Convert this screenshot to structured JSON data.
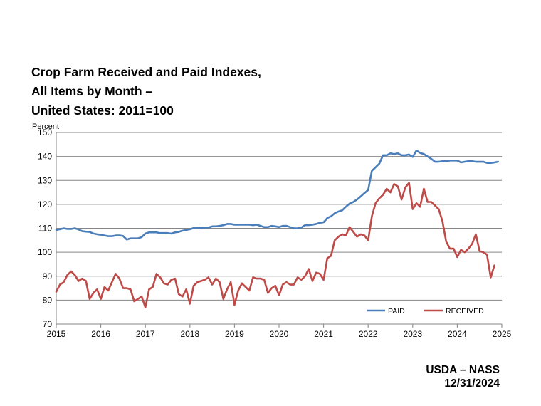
{
  "title_lines": [
    "Crop Farm Received and Paid Indexes,",
    "All Items by Month –",
    "United States: 2011=100"
  ],
  "source": {
    "org": "USDA – NASS",
    "date": "12/31/2024"
  },
  "chart_data": {
    "type": "line",
    "title": "Crop Farm Received and Paid Indexes, All Items by Month – United States: 2011=100",
    "ylabel": "Percent",
    "xlabel": "",
    "xlim": [
      2015,
      2025
    ],
    "ylim": [
      70,
      150
    ],
    "x_ticks": [
      "2015",
      "2016",
      "2017",
      "2018",
      "2019",
      "2020",
      "2021",
      "2022",
      "2023",
      "2024",
      "2025"
    ],
    "y_ticks": [
      "70",
      "80",
      "90",
      "100",
      "110",
      "120",
      "130",
      "140",
      "150"
    ],
    "grid": "horizontal",
    "legend_position": "bottom-right",
    "start_year": 2015,
    "series": [
      {
        "name": "PAID",
        "color": "#4a7ebb",
        "values": [
          109.3,
          109.6,
          110.0,
          109.7,
          109.7,
          110.0,
          109.5,
          108.8,
          108.6,
          108.5,
          107.8,
          107.5,
          107.3,
          107.0,
          106.7,
          106.7,
          107.0,
          107.0,
          106.8,
          105.3,
          105.8,
          105.8,
          105.8,
          106.3,
          107.8,
          108.3,
          108.3,
          108.3,
          108.0,
          108.0,
          108.0,
          107.8,
          108.3,
          108.5,
          109.0,
          109.3,
          109.6,
          110.1,
          110.3,
          110.1,
          110.3,
          110.3,
          110.8,
          110.8,
          111.0,
          111.3,
          111.8,
          111.8,
          111.5,
          111.5,
          111.5,
          111.5,
          111.5,
          111.3,
          111.5,
          111.0,
          110.5,
          110.5,
          111.0,
          110.8,
          110.5,
          111.0,
          111.0,
          110.5,
          110.0,
          110.0,
          110.3,
          111.3,
          111.3,
          111.5,
          111.8,
          112.3,
          112.5,
          114.3,
          115.0,
          116.3,
          117.0,
          117.5,
          119.0,
          120.3,
          121.0,
          122.0,
          123.3,
          124.7,
          126.0,
          134.0,
          135.5,
          137.0,
          140.5,
          140.5,
          141.3,
          141.0,
          141.3,
          140.5,
          140.5,
          140.8,
          139.8,
          142.5,
          141.5,
          141.0,
          140.0,
          139.0,
          137.8,
          137.8,
          138.0,
          138.0,
          138.3,
          138.3,
          138.3,
          137.5,
          137.8,
          138.0,
          138.0,
          137.8,
          137.8,
          137.8,
          137.3,
          137.3,
          137.5,
          137.8
        ]
      },
      {
        "name": "RECEIVED",
        "color": "#be4b48",
        "values": [
          83.5,
          86.5,
          87.5,
          90.5,
          92.0,
          90.5,
          88.0,
          89.0,
          88.0,
          80.5,
          83.0,
          84.5,
          80.5,
          85.5,
          84.0,
          87.5,
          91.0,
          89.0,
          85.0,
          85.0,
          84.5,
          79.5,
          80.5,
          81.5,
          77.0,
          84.5,
          85.5,
          91.0,
          89.5,
          87.0,
          86.5,
          88.5,
          89.0,
          82.5,
          81.5,
          84.5,
          78.5,
          86.0,
          87.5,
          88.0,
          88.5,
          89.5,
          86.5,
          89.0,
          87.5,
          80.5,
          84.5,
          87.5,
          78.0,
          84.0,
          87.0,
          85.5,
          84.0,
          89.5,
          89.0,
          89.0,
          88.5,
          83.0,
          85.0,
          86.0,
          82.0,
          86.5,
          87.5,
          86.5,
          86.5,
          89.5,
          88.5,
          90.0,
          93.0,
          88.0,
          91.5,
          91.0,
          88.5,
          97.5,
          98.5,
          105.0,
          106.5,
          107.5,
          107.0,
          110.5,
          108.5,
          106.5,
          107.5,
          107.0,
          105.0,
          115.0,
          120.5,
          122.5,
          124.0,
          126.5,
          125.0,
          128.5,
          127.5,
          122.0,
          127.0,
          129.0,
          118.0,
          120.5,
          119.0,
          126.5,
          121.0,
          121.0,
          119.5,
          118.0,
          113.0,
          104.5,
          101.5,
          101.5,
          98.0,
          101.0,
          100.0,
          101.5,
          103.5,
          107.5,
          100.5,
          100.0,
          99.0,
          89.5,
          94.5
        ]
      }
    ]
  }
}
